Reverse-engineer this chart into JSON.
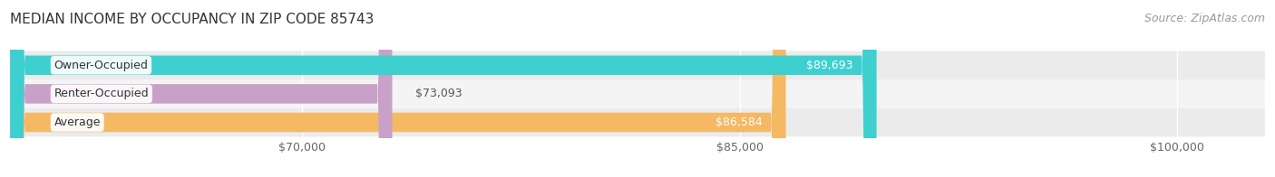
{
  "title": "MEDIAN INCOME BY OCCUPANCY IN ZIP CODE 85743",
  "source": "Source: ZipAtlas.com",
  "categories": [
    "Average",
    "Renter-Occupied",
    "Owner-Occupied"
  ],
  "values": [
    86584,
    73093,
    89693
  ],
  "bar_colors": [
    "#f5b863",
    "#c8a0c8",
    "#3ecfcf"
  ],
  "row_bg_colors": [
    "#ebebeb",
    "#f4f4f4",
    "#ebebeb"
  ],
  "xmin": 60000,
  "xmax": 103000,
  "xticks": [
    70000,
    85000,
    100000
  ],
  "xtick_labels": [
    "$70,000",
    "$85,000",
    "$100,000"
  ],
  "title_fontsize": 11,
  "source_fontsize": 9,
  "bar_label_fontsize": 9,
  "tick_fontsize": 9,
  "value_inside_threshold": 80000
}
